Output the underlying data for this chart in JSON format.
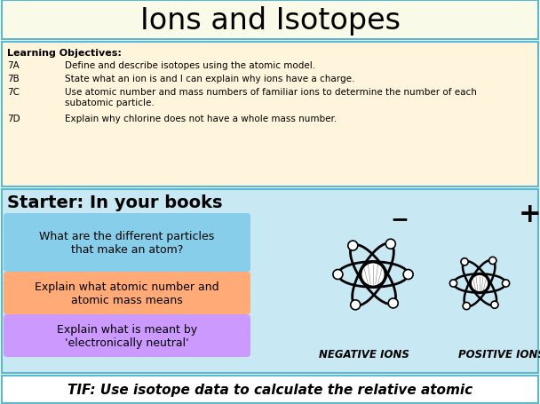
{
  "title": "Ions and Isotopes",
  "title_fontsize": 24,
  "bg_color": "#FAFAE8",
  "border_color": "#5BB8D4",
  "objectives_header": "Learning Objectives:",
  "objectives": [
    [
      "7A",
      "Define and describe isotopes using the atomic model."
    ],
    [
      "7B",
      "State what an ion is and I can explain why ions have a charge."
    ],
    [
      "7C",
      "Use atomic number and mass numbers of familiar ions to determine the number of each\nsubatomic particle."
    ],
    [
      "7D",
      "Explain why chlorine does not have a whole mass number."
    ]
  ],
  "starter_title": "Starter: In your books",
  "starter_bg": "#C8E8F4",
  "box1_text": "What are the different particles\nthat make an atom?",
  "box1_color": "#87CEEB",
  "box2_text": "Explain what atomic number and\natomic mass means",
  "box2_color": "#FFAA77",
  "box3_text": "Explain what is meant by\n'electronically neutral'",
  "box3_color": "#CC99FF",
  "tif_text": "TIF: Use isotope data to calculate the relative atomic",
  "tif_bg": "#FFFFFF",
  "obj_bg": "#FFF5DC",
  "title_bg": "#FAFAE8"
}
